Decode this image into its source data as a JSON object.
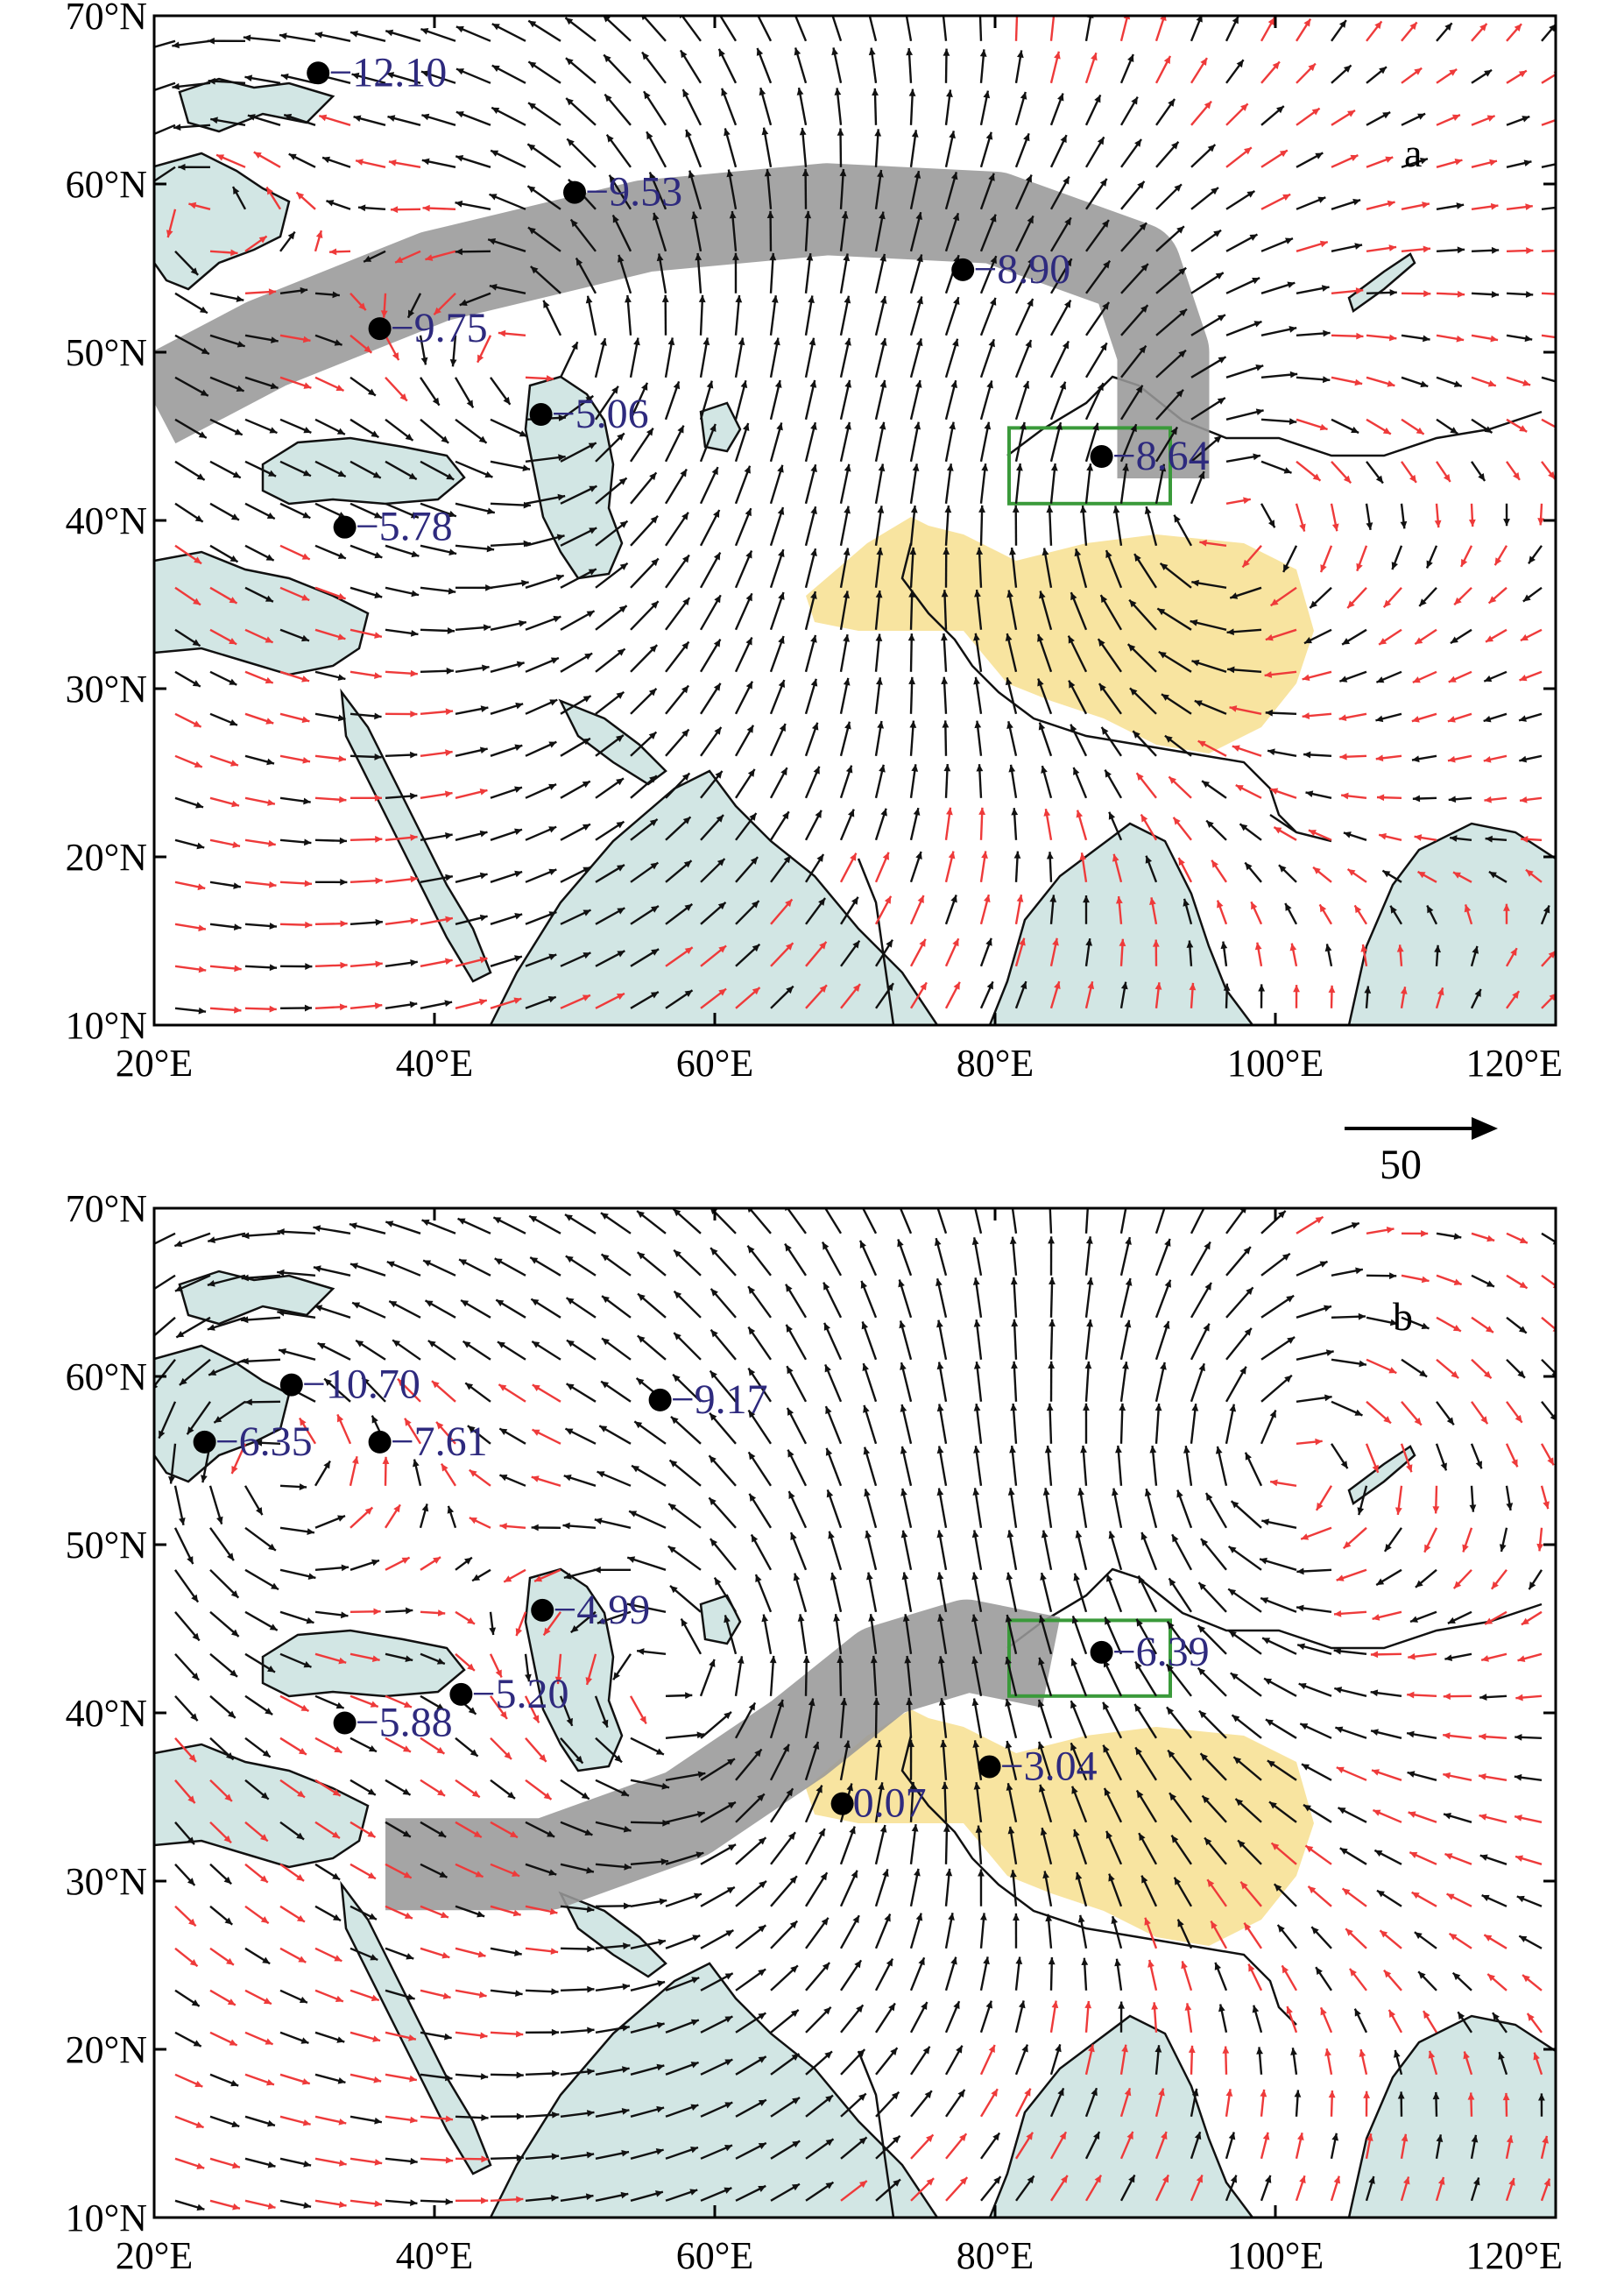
{
  "figure": {
    "colors": {
      "ocean": "#d2e6e4",
      "coast": "#111111",
      "plateau": "#f8e4a0",
      "band": "#999999",
      "box": "#3a9a3a",
      "vector_sig": "#111111",
      "vector_other": "#ee3a3a",
      "station_value": "#2e2a7e"
    },
    "lon_ticks": [
      "20°E",
      "40°E",
      "60°E",
      "80°E",
      "100°E",
      "120°E"
    ],
    "lat_ticks": [
      "10°N",
      "20°N",
      "30°N",
      "40°N",
      "50°N",
      "60°N",
      "70°N"
    ],
    "reference_vector": {
      "label": "50"
    },
    "panels": [
      {
        "id": "a",
        "label": "a",
        "stations": [
          {
            "lon": 31.7,
            "lat": 66.6,
            "value": "−12.10"
          },
          {
            "lon": 50.0,
            "lat": 59.5,
            "value": "−9.53"
          },
          {
            "lon": 77.7,
            "lat": 54.9,
            "value": "−8.90"
          },
          {
            "lon": 36.1,
            "lat": 51.4,
            "value": "−9.75"
          },
          {
            "lon": 47.6,
            "lat": 46.3,
            "value": "−5.06"
          },
          {
            "lon": 87.6,
            "lat": 43.8,
            "value": "−8.64"
          },
          {
            "lon": 33.6,
            "lat": 39.6,
            "value": "−5.78"
          }
        ],
        "gray_band": [
          [
            20,
            47
          ],
          [
            28,
            50.5
          ],
          [
            40,
            54.5
          ],
          [
            55,
            57.5
          ],
          [
            68,
            58.5
          ],
          [
            80,
            58
          ],
          [
            90,
            55
          ],
          [
            92,
            50
          ],
          [
            92,
            42.5
          ]
        ],
        "box": {
          "lon_min": 81.0,
          "lon_max": 92.5,
          "lat_min": 41.0,
          "lat_max": 45.5
        }
      },
      {
        "id": "b",
        "label": "b",
        "stations": [
          {
            "lon": 29.8,
            "lat": 59.5,
            "value": "−10.70"
          },
          {
            "lon": 56.1,
            "lat": 58.6,
            "value": "−9.17"
          },
          {
            "lon": 23.6,
            "lat": 56.1,
            "value": "−6.35"
          },
          {
            "lon": 36.1,
            "lat": 56.1,
            "value": "−7.61"
          },
          {
            "lon": 47.7,
            "lat": 46.1,
            "value": "−4.99"
          },
          {
            "lon": 87.6,
            "lat": 43.6,
            "value": "−6.39"
          },
          {
            "lon": 41.9,
            "lat": 41.1,
            "value": "−5.20"
          },
          {
            "lon": 33.6,
            "lat": 39.4,
            "value": "−5.88"
          },
          {
            "lon": 79.6,
            "lat": 36.8,
            "value": "−3.04"
          },
          {
            "lon": 69.1,
            "lat": 34.6,
            "value": "0.07"
          }
        ],
        "gray_band": [
          [
            36.5,
            31
          ],
          [
            48,
            31
          ],
          [
            58,
            34
          ],
          [
            66,
            38.5
          ],
          [
            72,
            42.5
          ],
          [
            78,
            44
          ],
          [
            84,
            43
          ]
        ],
        "box": {
          "lon_min": 81.0,
          "lon_max": 92.5,
          "lat_min": 41.0,
          "lat_max": 45.5
        }
      }
    ]
  }
}
